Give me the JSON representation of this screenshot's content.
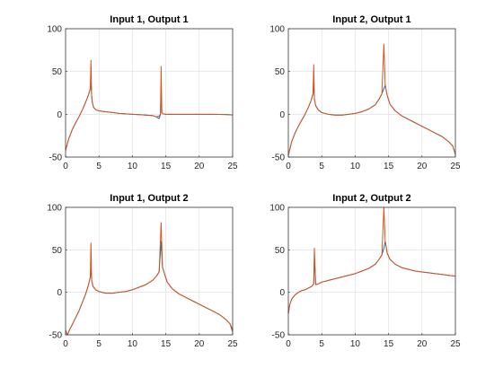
{
  "colors": {
    "series1": "#0072bd",
    "series2": "#d95319"
  },
  "chart_data": [
    {
      "type": "line",
      "title": "Input 1, Output 1",
      "xlabel": "",
      "ylabel": "",
      "xlim": [
        0,
        25
      ],
      "ylim": [
        -50,
        100
      ],
      "xticks": [
        0,
        5,
        10,
        15,
        20,
        25
      ],
      "yticks": [
        -50,
        0,
        50,
        100
      ],
      "xtick_labels": [
        "0",
        "5",
        "10",
        "15",
        "20",
        "25"
      ],
      "ytick_labels": [
        "-50",
        "0",
        "50",
        "100"
      ],
      "grid": true,
      "series": [
        {
          "x": [
            0,
            0.5,
            1,
            1.5,
            2,
            2.5,
            3,
            3.4,
            3.7,
            3.8,
            3.9,
            4.0,
            4.2,
            4.6,
            5,
            6,
            7,
            8,
            9,
            10,
            11,
            12,
            13,
            13.6,
            14.0,
            14.2,
            14.3,
            14.4,
            14.6,
            15,
            16,
            18,
            20,
            22,
            24,
            25
          ],
          "y": [
            -42,
            -28,
            -18,
            -10,
            -3,
            5,
            14,
            22,
            30,
            36,
            22,
            14,
            8,
            5,
            4,
            3,
            2,
            1,
            0.5,
            0,
            -0.5,
            -1,
            -1.5,
            -3,
            -5,
            0,
            34,
            2,
            0.5,
            0,
            0,
            0,
            0,
            0,
            -0.3,
            -0.8
          ]
        },
        {
          "x": [
            0,
            0.5,
            1,
            1.5,
            2,
            2.5,
            3,
            3.4,
            3.7,
            3.8,
            3.9,
            4.0,
            4.2,
            4.6,
            5,
            6,
            7,
            8,
            9,
            10,
            11,
            12,
            13,
            13.6,
            14.0,
            14.2,
            14.3,
            14.4,
            14.6,
            15,
            16,
            18,
            20,
            22,
            24,
            25
          ],
          "y": [
            -42,
            -28,
            -18,
            -10,
            -3,
            5,
            14,
            22,
            30,
            63,
            22,
            14,
            8,
            5,
            4,
            3,
            2,
            1,
            0.5,
            0,
            -0.5,
            -1,
            -1.5,
            -3,
            -2,
            0,
            56,
            2,
            0.5,
            0,
            0,
            0,
            0,
            0,
            -0.3,
            -0.8
          ]
        }
      ]
    },
    {
      "type": "line",
      "title": "Input 2, Output 1",
      "xlabel": "",
      "ylabel": "",
      "xlim": [
        0,
        25
      ],
      "ylim": [
        -50,
        100
      ],
      "xticks": [
        0,
        5,
        10,
        15,
        20,
        25
      ],
      "yticks": [
        -50,
        0,
        50,
        100
      ],
      "xtick_labels": [
        "0",
        "5",
        "10",
        "15",
        "20",
        "25"
      ],
      "ytick_labels": [
        "-50",
        "0",
        "50",
        "100"
      ],
      "grid": true,
      "series": [
        {
          "x": [
            0,
            0.5,
            1,
            1.5,
            2,
            2.5,
            3,
            3.4,
            3.7,
            3.8,
            3.9,
            4.1,
            4.5,
            5,
            6,
            7,
            8,
            9,
            10,
            11,
            12,
            13,
            13.6,
            14.0,
            14.3,
            14.5,
            14.8,
            15.2,
            16,
            17,
            18,
            19,
            20,
            21,
            22,
            23,
            24,
            24.6,
            25
          ],
          "y": [
            -48,
            -32,
            -22,
            -14,
            -7,
            0,
            8,
            16,
            24,
            45,
            18,
            10,
            5,
            2,
            0,
            -1,
            -1,
            0,
            1,
            3,
            6,
            11,
            18,
            24,
            30,
            34,
            22,
            12,
            4,
            -2,
            -6,
            -10,
            -14,
            -18,
            -22,
            -26,
            -32,
            -37,
            -47
          ]
        },
        {
          "x": [
            0,
            0.5,
            1,
            1.5,
            2,
            2.5,
            3,
            3.4,
            3.7,
            3.8,
            3.9,
            4.1,
            4.5,
            5,
            6,
            7,
            8,
            9,
            10,
            11,
            12,
            13,
            13.6,
            14.0,
            14.3,
            14.5,
            14.8,
            15.2,
            16,
            17,
            18,
            19,
            20,
            21,
            22,
            23,
            24,
            24.6,
            25
          ],
          "y": [
            -48,
            -32,
            -22,
            -14,
            -7,
            0,
            8,
            16,
            24,
            58,
            18,
            10,
            5,
            2,
            0,
            -1,
            -1,
            0,
            1,
            3,
            6,
            11,
            18,
            24,
            82,
            34,
            22,
            12,
            4,
            -2,
            -6,
            -10,
            -14,
            -18,
            -22,
            -26,
            -32,
            -37,
            -47
          ]
        }
      ]
    },
    {
      "type": "line",
      "title": "Input 1, Output 2",
      "xlabel": "",
      "ylabel": "",
      "xlim": [
        0,
        25
      ],
      "ylim": [
        -50,
        100
      ],
      "xticks": [
        0,
        5,
        10,
        15,
        20,
        25
      ],
      "yticks": [
        -50,
        0,
        50,
        100
      ],
      "xtick_labels": [
        "0",
        "5",
        "10",
        "15",
        "20",
        "25"
      ],
      "ytick_labels": [
        "-50",
        "0",
        "50",
        "100"
      ],
      "grid": true,
      "series": [
        {
          "x": [
            0,
            0.3,
            0.6,
            1,
            1.5,
            2,
            2.5,
            3,
            3.4,
            3.7,
            3.8,
            3.9,
            4.1,
            4.5,
            5,
            6,
            7,
            8,
            9,
            10,
            11,
            12,
            13,
            13.6,
            14.0,
            14.3,
            14.5,
            14.8,
            15.2,
            16,
            17,
            18,
            19,
            20,
            21,
            22,
            23,
            24,
            24.6,
            25
          ],
          "y": [
            -45,
            -50,
            -44,
            -38,
            -30,
            -22,
            -12,
            -2,
            8,
            18,
            30,
            14,
            7,
            3,
            1,
            -1,
            -1,
            0,
            1,
            3,
            6,
            9,
            14,
            19,
            24,
            60,
            30,
            22,
            12,
            4,
            -2,
            -6,
            -10,
            -14,
            -18,
            -22,
            -26,
            -32,
            -37,
            -44
          ]
        },
        {
          "x": [
            0,
            0.3,
            0.6,
            1,
            1.5,
            2,
            2.5,
            3,
            3.4,
            3.7,
            3.8,
            3.9,
            4.1,
            4.5,
            5,
            6,
            7,
            8,
            9,
            10,
            11,
            12,
            13,
            13.6,
            14.0,
            14.3,
            14.5,
            14.8,
            15.2,
            16,
            17,
            18,
            19,
            20,
            21,
            22,
            23,
            24,
            24.6,
            25
          ],
          "y": [
            -45,
            -50,
            -44,
            -38,
            -30,
            -22,
            -12,
            -2,
            8,
            18,
            58,
            14,
            7,
            3,
            1,
            -1,
            -1,
            0,
            1,
            3,
            6,
            9,
            14,
            19,
            24,
            82,
            30,
            22,
            12,
            4,
            -2,
            -6,
            -10,
            -14,
            -18,
            -22,
            -26,
            -32,
            -37,
            -47
          ]
        }
      ]
    },
    {
      "type": "line",
      "title": "Input 2, Output 2",
      "xlabel": "",
      "ylabel": "",
      "xlim": [
        0,
        25
      ],
      "ylim": [
        -50,
        100
      ],
      "xticks": [
        0,
        5,
        10,
        15,
        20,
        25
      ],
      "yticks": [
        -50,
        0,
        50,
        100
      ],
      "xtick_labels": [
        "0",
        "5",
        "10",
        "15",
        "20",
        "25"
      ],
      "ytick_labels": [
        "-50",
        "0",
        "50",
        "100"
      ],
      "grid": true,
      "series": [
        {
          "x": [
            0,
            0.2,
            0.5,
            1,
            1.5,
            2,
            2.5,
            3,
            3.5,
            3.8,
            3.9,
            4.1,
            4.5,
            5,
            6,
            7,
            8,
            9,
            10,
            11,
            12,
            13,
            13.6,
            14.0,
            14.3,
            14.5,
            14.8,
            15.2,
            16,
            17,
            18,
            19,
            20,
            21,
            22,
            23,
            24,
            25
          ],
          "y": [
            -25,
            -15,
            -8,
            -3,
            0,
            2,
            3,
            5,
            7,
            10,
            40,
            9,
            10,
            12,
            14,
            16,
            18,
            20,
            22,
            25,
            28,
            33,
            39,
            44,
            52,
            60,
            46,
            39,
            33,
            29,
            27,
            25,
            24,
            23,
            22,
            21,
            20,
            19
          ]
        },
        {
          "x": [
            0,
            0.2,
            0.5,
            1,
            1.5,
            2,
            2.5,
            3,
            3.5,
            3.8,
            3.9,
            4.1,
            4.5,
            5,
            6,
            7,
            8,
            9,
            10,
            11,
            12,
            13,
            13.6,
            14.0,
            14.3,
            14.5,
            14.8,
            15.2,
            16,
            17,
            18,
            19,
            20,
            21,
            22,
            23,
            24,
            25
          ],
          "y": [
            -25,
            -15,
            -8,
            -3,
            0,
            2,
            3,
            5,
            7,
            10,
            52,
            9,
            10,
            12,
            14,
            16,
            18,
            20,
            22,
            25,
            28,
            33,
            39,
            44,
            100,
            60,
            46,
            39,
            33,
            29,
            27,
            25,
            24,
            23,
            22,
            21,
            20,
            19
          ]
        }
      ]
    }
  ]
}
